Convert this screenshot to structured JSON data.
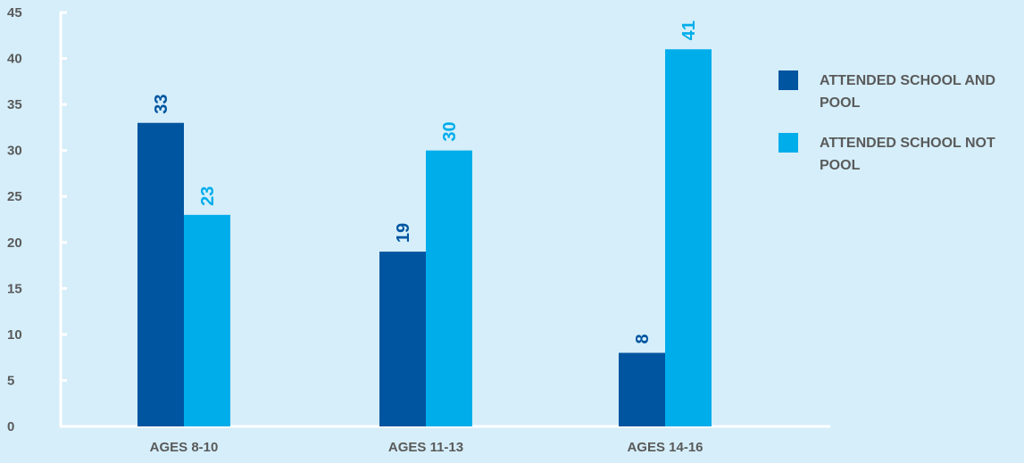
{
  "chart_data": {
    "type": "bar",
    "categories": [
      "AGES 8-10",
      "AGES 11-13",
      "AGES 14-16"
    ],
    "series": [
      {
        "name": "ATTENDED SCHOOL AND POOL",
        "values": [
          33,
          19,
          8
        ],
        "color": "#0055a0"
      },
      {
        "name": "ATTENDED SCHOOL NOT POOL",
        "values": [
          23,
          30,
          41
        ],
        "color": "#00adeb"
      }
    ],
    "yticks": [
      0,
      5,
      10,
      15,
      20,
      25,
      30,
      35,
      40,
      45
    ],
    "ylim": [
      0,
      45
    ],
    "title": "",
    "xlabel": "",
    "ylabel": "",
    "legend_position": "right",
    "grid": false,
    "background": "#d5eefa",
    "axis_color": "#ffffff",
    "label_color": "#5a5a5a"
  }
}
